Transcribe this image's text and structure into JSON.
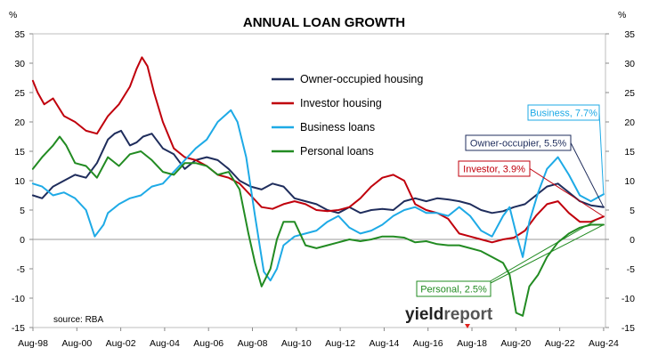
{
  "chart_data": {
    "type": "line",
    "title": "ANNUAL LOAN GROWTH",
    "ylabel_left": "%",
    "ylabel_right": "%",
    "ylim": [
      -15,
      35
    ],
    "yticks": [
      -15,
      -10,
      -5,
      0,
      5,
      10,
      15,
      20,
      25,
      30,
      35
    ],
    "xlim": [
      1998.583,
      2024.667
    ],
    "xtick_labels": [
      "Aug-98",
      "Aug-00",
      "Aug-02",
      "Aug-04",
      "Aug-06",
      "Aug-08",
      "Aug-10",
      "Aug-12",
      "Aug-14",
      "Aug-16",
      "Aug-18",
      "Aug-20",
      "Aug-22",
      "Aug-24"
    ],
    "xtick_values": [
      1998.583,
      2000.583,
      2002.583,
      2004.583,
      2006.583,
      2008.583,
      2010.583,
      2012.583,
      2014.583,
      2016.583,
      2018.583,
      2020.583,
      2022.583,
      2024.583
    ],
    "grid": false,
    "legend_position": "top-center",
    "source": "source: RBA",
    "logo": "yieldreport",
    "series": [
      {
        "name": "Owner-occupied housing",
        "color": "#1f2d5c",
        "x": [
          1998.58,
          1999.0,
          1999.5,
          2000.0,
          2000.5,
          2001.0,
          2001.5,
          2002.0,
          2002.3,
          2002.6,
          2003.0,
          2003.3,
          2003.6,
          2004.0,
          2004.5,
          2005.0,
          2005.5,
          2006.0,
          2006.5,
          2007.0,
          2007.5,
          2008.0,
          2008.5,
          2009.0,
          2009.5,
          2010.0,
          2010.5,
          2011.0,
          2011.5,
          2012.0,
          2012.5,
          2013.0,
          2013.5,
          2014.0,
          2014.5,
          2015.0,
          2015.5,
          2016.0,
          2016.5,
          2017.0,
          2017.5,
          2018.0,
          2018.5,
          2019.0,
          2019.5,
          2020.0,
          2020.5,
          2021.0,
          2021.5,
          2022.0,
          2022.5,
          2023.0,
          2023.5,
          2024.0,
          2024.58
        ],
        "y": [
          7.5,
          7.0,
          9.0,
          10.0,
          11.0,
          10.5,
          13.0,
          17.0,
          18.0,
          18.5,
          16.0,
          16.5,
          17.5,
          18.0,
          15.5,
          14.5,
          12.0,
          13.5,
          14.0,
          13.5,
          12.0,
          10.0,
          9.0,
          8.5,
          9.5,
          9.0,
          7.0,
          6.5,
          6.0,
          5.0,
          4.5,
          5.5,
          4.5,
          5.0,
          5.2,
          5.0,
          6.5,
          7.0,
          6.5,
          7.0,
          6.8,
          6.5,
          6.0,
          5.0,
          4.5,
          4.8,
          5.5,
          6.0,
          7.5,
          9.0,
          9.5,
          8.0,
          6.5,
          5.8,
          5.5
        ]
      },
      {
        "name": "Investor housing",
        "color": "#c0000c",
        "x": [
          1998.58,
          1998.8,
          1999.1,
          1999.5,
          2000.0,
          2000.5,
          2001.0,
          2001.5,
          2002.0,
          2002.5,
          2003.0,
          2003.3,
          2003.55,
          2003.8,
          2004.1,
          2004.5,
          2005.0,
          2005.5,
          2006.0,
          2006.5,
          2007.0,
          2007.5,
          2008.0,
          2008.5,
          2009.0,
          2009.5,
          2010.0,
          2010.5,
          2011.0,
          2011.5,
          2012.0,
          2012.5,
          2013.0,
          2013.5,
          2014.0,
          2014.5,
          2015.0,
          2015.5,
          2016.0,
          2016.5,
          2017.0,
          2017.5,
          2018.0,
          2018.5,
          2019.0,
          2019.5,
          2020.0,
          2020.5,
          2021.0,
          2021.5,
          2022.0,
          2022.5,
          2023.0,
          2023.5,
          2024.0,
          2024.58
        ],
        "y": [
          27.0,
          25.0,
          23.0,
          24.0,
          21.0,
          20.0,
          18.5,
          18.0,
          21.0,
          23.0,
          26.0,
          29.0,
          31.0,
          29.5,
          25.0,
          20.0,
          15.5,
          14.0,
          13.5,
          12.5,
          11.0,
          10.5,
          9.5,
          7.5,
          5.5,
          5.2,
          6.0,
          6.5,
          6.0,
          5.0,
          4.8,
          5.0,
          5.5,
          7.0,
          9.0,
          10.5,
          11.0,
          10.0,
          6.0,
          5.0,
          4.5,
          3.5,
          1.0,
          0.5,
          0.0,
          -0.5,
          0.0,
          0.3,
          1.5,
          4.0,
          6.0,
          6.5,
          4.5,
          3.0,
          3.0,
          3.9
        ]
      },
      {
        "name": "Business loans",
        "color": "#1eaae6",
        "x": [
          1998.58,
          1999.0,
          1999.5,
          2000.0,
          2000.5,
          2001.0,
          2001.4,
          2001.8,
          2002.0,
          2002.5,
          2003.0,
          2003.5,
          2004.0,
          2004.5,
          2005.0,
          2005.5,
          2006.0,
          2006.5,
          2007.0,
          2007.3,
          2007.6,
          2007.9,
          2008.3,
          2008.7,
          2009.1,
          2009.4,
          2009.7,
          2010.0,
          2010.5,
          2011.0,
          2011.5,
          2012.0,
          2012.5,
          2013.0,
          2013.5,
          2014.0,
          2014.5,
          2015.0,
          2015.5,
          2016.0,
          2016.5,
          2017.0,
          2017.5,
          2018.0,
          2018.5,
          2019.0,
          2019.5,
          2020.0,
          2020.3,
          2020.6,
          2020.9,
          2021.2,
          2021.6,
          2022.0,
          2022.5,
          2023.0,
          2023.5,
          2024.0,
          2024.58
        ],
        "y": [
          9.5,
          9.0,
          7.5,
          8.0,
          7.0,
          5.0,
          0.5,
          2.5,
          4.5,
          6.0,
          7.0,
          7.5,
          9.0,
          9.5,
          11.5,
          13.5,
          15.5,
          17.0,
          20.0,
          21.0,
          22.0,
          20.0,
          14.0,
          4.0,
          -5.5,
          -7.0,
          -5.0,
          -1.0,
          0.5,
          1.0,
          1.5,
          3.0,
          4.0,
          2.0,
          1.0,
          1.5,
          2.5,
          4.0,
          5.0,
          5.5,
          4.5,
          4.5,
          4.0,
          5.5,
          4.0,
          1.5,
          0.5,
          4.0,
          5.5,
          1.0,
          -3.0,
          3.0,
          8.0,
          12.0,
          14.0,
          11.0,
          7.5,
          6.5,
          7.7
        ]
      },
      {
        "name": "Personal loans",
        "color": "#228b22",
        "x": [
          1998.58,
          1999.0,
          1999.5,
          1999.8,
          2000.1,
          2000.5,
          2001.0,
          2001.5,
          2002.0,
          2002.5,
          2003.0,
          2003.5,
          2004.0,
          2004.5,
          2005.0,
          2005.5,
          2006.0,
          2006.5,
          2007.0,
          2007.5,
          2008.0,
          2008.4,
          2008.7,
          2009.0,
          2009.4,
          2009.7,
          2010.0,
          2010.5,
          2011.0,
          2011.5,
          2012.0,
          2012.5,
          2013.0,
          2013.5,
          2014.0,
          2014.5,
          2015.0,
          2015.5,
          2016.0,
          2016.5,
          2017.0,
          2017.5,
          2018.0,
          2018.5,
          2019.0,
          2019.5,
          2020.0,
          2020.3,
          2020.6,
          2020.9,
          2021.2,
          2021.6,
          2022.0,
          2022.5,
          2023.0,
          2023.5,
          2024.0,
          2024.58
        ],
        "y": [
          12.0,
          14.0,
          16.0,
          17.5,
          16.0,
          13.0,
          12.5,
          10.5,
          14.0,
          12.5,
          14.5,
          15.0,
          13.5,
          11.5,
          11.0,
          13.0,
          13.0,
          12.5,
          11.0,
          11.5,
          8.5,
          1.0,
          -4.0,
          -8.0,
          -5.0,
          0.0,
          3.0,
          3.0,
          -1.0,
          -1.5,
          -1.0,
          -0.5,
          0.0,
          -0.3,
          0.0,
          0.5,
          0.5,
          0.3,
          -0.5,
          -0.3,
          -0.8,
          -1.0,
          -1.0,
          -1.5,
          -2.0,
          -3.0,
          -4.0,
          -6.0,
          -12.5,
          -13.0,
          -8.0,
          -6.0,
          -3.0,
          -0.5,
          1.0,
          2.0,
          2.5,
          2.5
        ]
      }
    ],
    "legend": [
      {
        "name": "Owner-occupied housing",
        "color": "#1f2d5c"
      },
      {
        "name": "Investor housing",
        "color": "#c0000c"
      },
      {
        "name": "Business loans",
        "color": "#1eaae6"
      },
      {
        "name": "Personal loans",
        "color": "#228b22"
      }
    ],
    "annotations": [
      {
        "text": "Business, 7.7%",
        "color": "#1eaae6",
        "x": 2024.58,
        "y": 7.7
      },
      {
        "text": "Owner-occupier, 5.5%",
        "color": "#1f2d5c",
        "x": 2024.58,
        "y": 5.5
      },
      {
        "text": "Investor, 3.9%",
        "color": "#c0000c",
        "x": 2024.58,
        "y": 3.9
      },
      {
        "text": "Personal, 2.5%",
        "color": "#228b22",
        "x": 2024.58,
        "y": 2.5
      }
    ]
  }
}
